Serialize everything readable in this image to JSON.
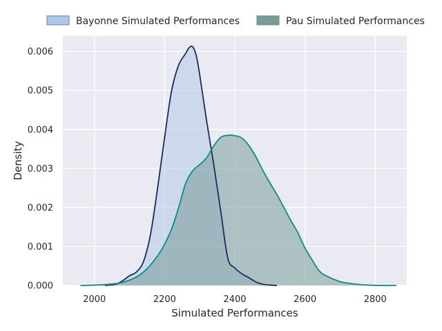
{
  "chart_data": {
    "type": "area",
    "title": "",
    "xlabel": "Simulated Performances",
    "ylabel": "Density",
    "xlim": [
      1910,
      2890
    ],
    "ylim": [
      0,
      0.0064
    ],
    "xticks": [
      2000,
      2200,
      2400,
      2600,
      2800
    ],
    "yticks": [
      0.0,
      0.001,
      0.002,
      0.003,
      0.004,
      0.005,
      0.006
    ],
    "ytick_labels": [
      "0.000",
      "0.001",
      "0.002",
      "0.003",
      "0.004",
      "0.005",
      "0.006"
    ],
    "grid": true,
    "legend_position": "top",
    "series": [
      {
        "name": "Bayonne Simulated Performances",
        "line_color": "#1b2a5a",
        "fill_color": "#aec7e8",
        "x": [
          2030,
          2060,
          2080,
          2100,
          2120,
          2140,
          2160,
          2180,
          2200,
          2220,
          2240,
          2260,
          2270,
          2280,
          2290,
          2300,
          2320,
          2340,
          2360,
          2380,
          2400,
          2420,
          2440,
          2460,
          2480,
          2500,
          2520
        ],
        "y": [
          0.0,
          3e-05,
          0.00012,
          0.00025,
          0.00035,
          0.00062,
          0.00132,
          0.0025,
          0.0038,
          0.005,
          0.00565,
          0.00595,
          0.0061,
          0.00612,
          0.0059,
          0.0054,
          0.0042,
          0.0031,
          0.0019,
          0.0007,
          0.00045,
          0.0003,
          0.0002,
          9e-05,
          3e-05,
          1e-05,
          0.0
        ]
      },
      {
        "name": "Pau Simulated Performances",
        "line_color": "#0f8a82",
        "fill_color": "#6f9592",
        "x": [
          1960,
          2000,
          2040,
          2080,
          2120,
          2150,
          2180,
          2200,
          2220,
          2240,
          2260,
          2280,
          2300,
          2320,
          2340,
          2360,
          2380,
          2400,
          2420,
          2440,
          2460,
          2480,
          2500,
          2520,
          2540,
          2560,
          2580,
          2600,
          2620,
          2640,
          2660,
          2700,
          2740,
          2780,
          2820,
          2860
        ],
        "y": [
          0.0,
          1e-05,
          3e-05,
          8e-05,
          0.00022,
          0.00043,
          0.00076,
          0.00106,
          0.00145,
          0.002,
          0.00262,
          0.00294,
          0.0031,
          0.00328,
          0.00358,
          0.0038,
          0.00385,
          0.00384,
          0.00378,
          0.00359,
          0.0033,
          0.00295,
          0.00263,
          0.00233,
          0.002,
          0.00166,
          0.00135,
          0.00096,
          0.00066,
          0.00038,
          0.00025,
          0.0001,
          4e-05,
          1e-05,
          0.0,
          0.0
        ]
      }
    ]
  }
}
